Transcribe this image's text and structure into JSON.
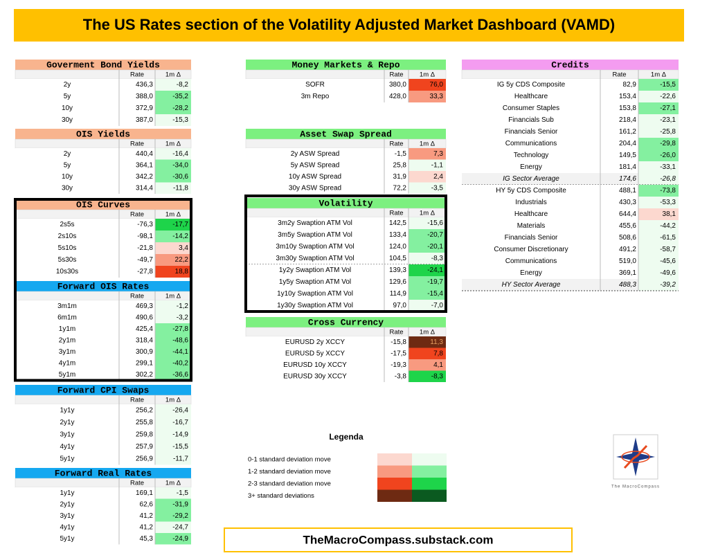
{
  "header": {
    "title": "The US Rates section of the Volatility Adjusted Market Dashboard (VAMD)"
  },
  "columns": [
    "Rate",
    "1m Δ"
  ],
  "tables": [
    {
      "title": "Goverment Bond Yields",
      "color": "#f8b48e",
      "rows": [
        {
          "label": "2y",
          "rate": "436,3",
          "delta": "-8,2",
          "color": "#eefcf0"
        },
        {
          "label": "5y",
          "rate": "388,0",
          "delta": "-35,2",
          "color": "#84f0a0"
        },
        {
          "label": "10y",
          "rate": "372,9",
          "delta": "-28,2",
          "color": "#84f0a0"
        },
        {
          "label": "30y",
          "rate": "387,0",
          "delta": "-15,3",
          "color": "#eefcf0"
        }
      ]
    },
    {
      "title": "OIS Yields",
      "color": "#f8b48e",
      "rows": [
        {
          "label": "2y",
          "rate": "440,4",
          "delta": "-16,4",
          "color": "#eefcf0"
        },
        {
          "label": "5y",
          "rate": "364,1",
          "delta": "-34,0",
          "color": "#84f0a0"
        },
        {
          "label": "10y",
          "rate": "342,2",
          "delta": "-30,6",
          "color": "#84f0a0"
        },
        {
          "label": "30y",
          "rate": "314,4",
          "delta": "-11,8",
          "color": "#eefcf0"
        }
      ]
    },
    {
      "title": "OIS Curves",
      "color": "#f8b48e",
      "rows": [
        {
          "label": "2s5s",
          "rate": "-76,3",
          "delta": "-17,7",
          "color": "#1ed44a"
        },
        {
          "label": "2s10s",
          "rate": "-98,1",
          "delta": "-14,2",
          "color": "#84f0a0"
        },
        {
          "label": "5s10s",
          "rate": "-21,8",
          "delta": "3,4",
          "color": "#fcd8cf"
        },
        {
          "label": "5s30s",
          "rate": "-49,7",
          "delta": "22,2",
          "color": "#f89a80"
        },
        {
          "label": "10s30s",
          "rate": "-27,8",
          "delta": "18,8",
          "color": "#f0441e"
        }
      ]
    },
    {
      "title": "Forward OIS Rates",
      "color": "#16a8f0",
      "rows": [
        {
          "label": "3m1m",
          "rate": "469,3",
          "delta": "-1,2",
          "color": "#eefcf0"
        },
        {
          "label": "6m1m",
          "rate": "490,6",
          "delta": "-3,2",
          "color": "#eefcf0"
        },
        {
          "label": "1y1m",
          "rate": "425,4",
          "delta": "-27,8",
          "color": "#84f0a0"
        },
        {
          "label": "2y1m",
          "rate": "318,4",
          "delta": "-48,6",
          "color": "#84f0a0"
        },
        {
          "label": "3y1m",
          "rate": "300,9",
          "delta": "-44,1",
          "color": "#84f0a0"
        },
        {
          "label": "4y1m",
          "rate": "299,1",
          "delta": "-40,2",
          "color": "#84f0a0"
        },
        {
          "label": "5y1m",
          "rate": "302,2",
          "delta": "-36,6",
          "color": "#84f0a0"
        }
      ]
    },
    {
      "title": "Forward CPI Swaps",
      "color": "#16a8f0",
      "rows": [
        {
          "label": "1y1y",
          "rate": "256,2",
          "delta": "-26,4",
          "color": "#eefcf0"
        },
        {
          "label": "2y1y",
          "rate": "255,8",
          "delta": "-16,7",
          "color": "#eefcf0"
        },
        {
          "label": "3y1y",
          "rate": "259,8",
          "delta": "-14,9",
          "color": "#eefcf0"
        },
        {
          "label": "4y1y",
          "rate": "257,9",
          "delta": "-15,5",
          "color": "#eefcf0"
        },
        {
          "label": "5y1y",
          "rate": "256,9",
          "delta": "-11,7",
          "color": "#eefcf0"
        }
      ]
    },
    {
      "title": "Forward Real Rates",
      "color": "#16a8f0",
      "rows": [
        {
          "label": "1y1y",
          "rate": "169,1",
          "delta": "-1,5",
          "color": "#eefcf0"
        },
        {
          "label": "2y1y",
          "rate": "62,6",
          "delta": "-31,9",
          "color": "#84f0a0"
        },
        {
          "label": "3y1y",
          "rate": "41,2",
          "delta": "-29,2",
          "color": "#84f0a0"
        },
        {
          "label": "4y1y",
          "rate": "41,2",
          "delta": "-24,7",
          "color": "#eefcf0"
        },
        {
          "label": "5y1y",
          "rate": "45,3",
          "delta": "-24,9",
          "color": "#84f0a0"
        }
      ]
    },
    {
      "title": "Money Markets & Repo",
      "color": "#7cf080",
      "rows": [
        {
          "label": "SOFR",
          "rate": "380,0",
          "delta": "76,0",
          "color": "#f0441e"
        },
        {
          "label": "3m  Repo",
          "rate": "428,0",
          "delta": "33,3",
          "color": "#f89a80"
        }
      ]
    },
    {
      "title": "Asset Swap Spread",
      "color": "#7cf080",
      "rows": [
        {
          "label": "2y  ASW  Spread",
          "rate": "-1,5",
          "delta": "7,3",
          "color": "#f89a80"
        },
        {
          "label": "5y  ASW  Spread",
          "rate": "25,8",
          "delta": "-1,1",
          "color": "#eefcf0"
        },
        {
          "label": "10y  ASW  Spread",
          "rate": "31,9",
          "delta": "2,4",
          "color": "#fcd8cf"
        },
        {
          "label": "30y  ASW  Spread",
          "rate": "72,2",
          "delta": "-3,5",
          "color": "#eefcf0"
        }
      ]
    },
    {
      "title": "Volatility",
      "color": "#7cf080",
      "rows": [
        {
          "label": "3m2y  Swaption  ATM  Vol",
          "rate": "142,5",
          "delta": "-15,6",
          "color": "#eefcf0"
        },
        {
          "label": "3m5y  Swaption  ATM  Vol",
          "rate": "133,4",
          "delta": "-20,7",
          "color": "#84f0a0"
        },
        {
          "label": "3m10y  Swaption  ATM  Vol",
          "rate": "124,0",
          "delta": "-20,1",
          "color": "#84f0a0"
        },
        {
          "label": "3m30y  Swaption  ATM  Vol",
          "rate": "104,5",
          "delta": "-8,3",
          "color": "#eefcf0"
        },
        {
          "label": "1y2y  Swaption  ATM  Vol",
          "rate": "139,3",
          "delta": "-24,1",
          "color": "#1ed44a"
        },
        {
          "label": "1y5y  Swaption  ATM  Vol",
          "rate": "129,6",
          "delta": "-19,7",
          "color": "#84f0a0"
        },
        {
          "label": "1y10y  Swaption  ATM  Vol",
          "rate": "114,9",
          "delta": "-15,4",
          "color": "#84f0a0"
        },
        {
          "label": "1y30y  Swaption  ATM  Vol",
          "rate": "97,0",
          "delta": "-7,0",
          "color": "#eefcf0"
        }
      ]
    },
    {
      "title": "Cross Currency",
      "color": "#7cf080",
      "rows": [
        {
          "label": "EURUSD  2y  XCCY",
          "rate": "-15,8",
          "delta": "11,3",
          "color": "#6e2a12"
        },
        {
          "label": "EURUSD  5y  XCCY",
          "rate": "-17,5",
          "delta": "7,8",
          "color": "#f0441e"
        },
        {
          "label": "EURUSD  10y  XCCY",
          "rate": "-19,3",
          "delta": "4,1",
          "color": "#f89a80"
        },
        {
          "label": "EURUSD  30y  XCCY",
          "rate": "-3,8",
          "delta": "-8,3",
          "color": "#1ed44a"
        }
      ]
    },
    {
      "title": "Credits",
      "color": "#f49cf0",
      "rows": [
        {
          "label": "IG  5y  CDS  Composite",
          "rate": "82,9",
          "delta": "-15,5",
          "color": "#84f0a0"
        },
        {
          "label": "Healthcare",
          "rate": "153,4",
          "delta": "-22,6",
          "color": "#eefcf0"
        },
        {
          "label": "Consumer  Staples",
          "rate": "153,8",
          "delta": "-27,1",
          "color": "#84f0a0"
        },
        {
          "label": "Financials  Sub",
          "rate": "218,4",
          "delta": "-23,1",
          "color": "#eefcf0"
        },
        {
          "label": "Financials  Senior",
          "rate": "161,2",
          "delta": "-25,8",
          "color": "#eefcf0"
        },
        {
          "label": "Communications",
          "rate": "204,4",
          "delta": "-29,8",
          "color": "#84f0a0"
        },
        {
          "label": "Technology",
          "rate": "149,5",
          "delta": "-26,0",
          "color": "#84f0a0"
        },
        {
          "label": "Energy",
          "rate": "181,4",
          "delta": "-33,1",
          "color": "#eefcf0"
        },
        {
          "label": "IG  Sector  Average",
          "rate": "174,6",
          "delta": "-26,8",
          "color": "#eefcf0"
        },
        {
          "label": "HY  5y  CDS  Composite",
          "rate": "488,1",
          "delta": "-73,8",
          "color": "#84f0a0"
        },
        {
          "label": "Industrials",
          "rate": "430,3",
          "delta": "-53,3",
          "color": "#eefcf0"
        },
        {
          "label": "Healthcare",
          "rate": "644,4",
          "delta": "38,1",
          "color": "#fcd8cf"
        },
        {
          "label": "Materials",
          "rate": "455,6",
          "delta": "-44,2",
          "color": "#eefcf0"
        },
        {
          "label": "Financials  Senior",
          "rate": "508,6",
          "delta": "-61,5",
          "color": "#eefcf0"
        },
        {
          "label": "Consumer  Discretionary",
          "rate": "491,2",
          "delta": "-58,7",
          "color": "#eefcf0"
        },
        {
          "label": "Communications",
          "rate": "519,0",
          "delta": "-45,6",
          "color": "#eefcf0"
        },
        {
          "label": "Energy",
          "rate": "369,1",
          "delta": "-49,6",
          "color": "#eefcf0"
        },
        {
          "label": "HY  Sector  Average",
          "rate": "488,3",
          "delta": "-39,2",
          "color": "#eefcf0"
        }
      ]
    }
  ],
  "legend": {
    "title": "Legenda",
    "items": [
      {
        "label": "0-1 standard deviation move",
        "colors": [
          "#fcd8cf",
          "#eefcf0"
        ]
      },
      {
        "label": "1-2 standard deviation move",
        "colors": [
          "#f89a80",
          "#84f0a0"
        ]
      },
      {
        "label": "2-3 standard deviation move",
        "colors": [
          "#f0441e",
          "#1ed44a"
        ]
      },
      {
        "label": "3+ standard deviations",
        "colors": [
          "#6e2a12",
          "#0b5a20"
        ]
      }
    ]
  },
  "footer": {
    "link": "TheMacroCompass.substack.com",
    "logo_text": "The MacroCompass"
  }
}
